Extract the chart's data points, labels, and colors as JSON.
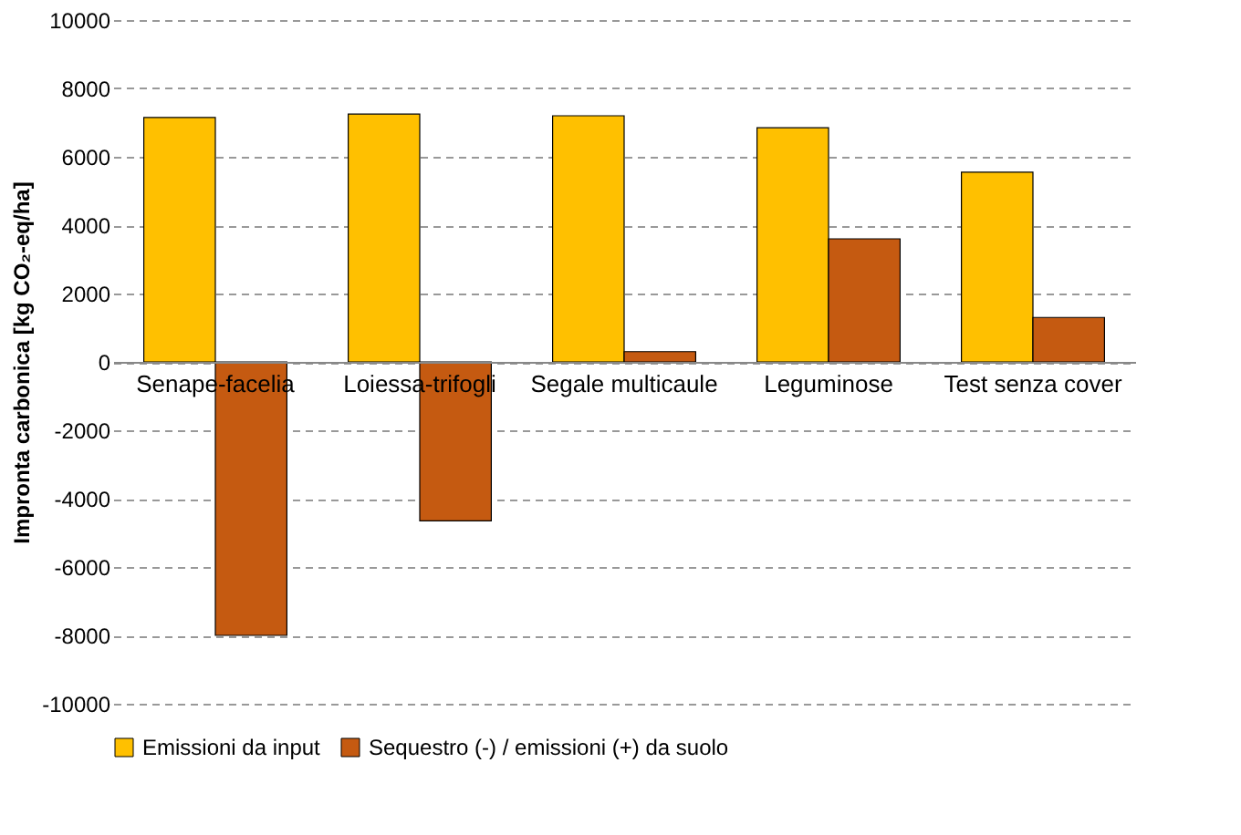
{
  "chart_data": {
    "type": "bar",
    "ylabel": "Impronta carbonica [kg CO₂-eq/ha]",
    "categories": [
      "Senape-facelia",
      "Loiessa-trifogli",
      "Segale multicaule",
      "Leguminose",
      "Test senza cover"
    ],
    "series": [
      {
        "name": "Emissioni da input",
        "color": "#ffc000",
        "values": [
          7150,
          7250,
          7200,
          6850,
          5550
        ]
      },
      {
        "name": "Sequestro (-) / emissioni (+) da suolo",
        "color": "#c55a11",
        "values": [
          -8000,
          -4650,
          300,
          3600,
          1300
        ]
      }
    ],
    "ylim": [
      -10000,
      10000
    ],
    "yticks": [
      -10000,
      -8000,
      -6000,
      -4000,
      -2000,
      0,
      2000,
      4000,
      6000,
      8000,
      10000
    ],
    "grid": "y",
    "legend": "bottom"
  }
}
